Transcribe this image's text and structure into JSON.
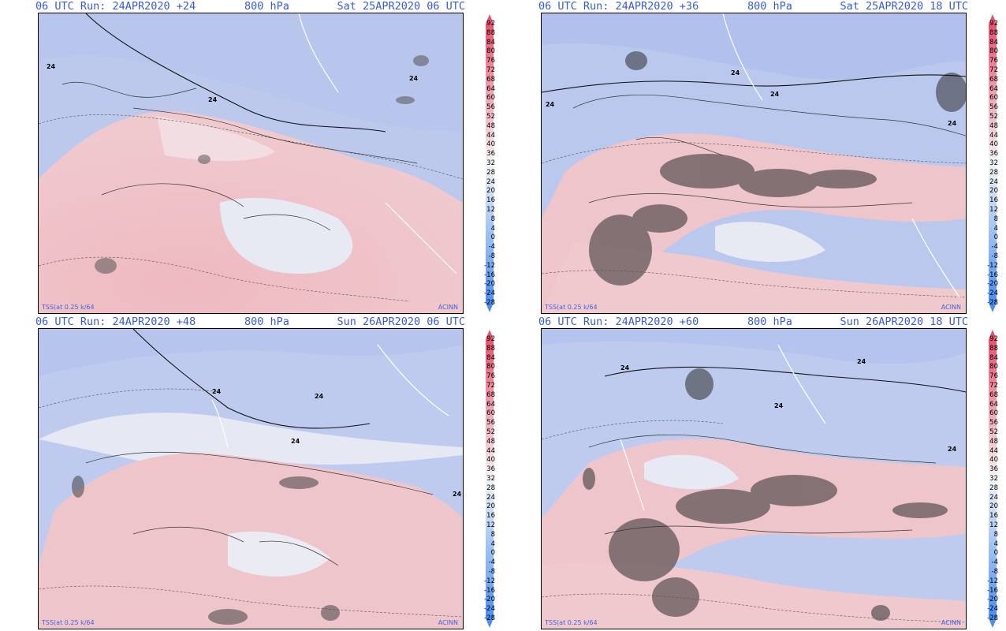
{
  "panels": [
    {
      "run": "06 UTC Run: 24APR2020 +24",
      "level": "800 hPa",
      "valid": "Sat 25APR2020 06 UTC",
      "corner_left": "TSS(at 0.25 k/64",
      "corner_right": "ACINN",
      "contour_labels": [
        "24",
        "24",
        "24"
      ]
    },
    {
      "run": "06 UTC Run: 24APR2020 +36",
      "level": "800 hPa",
      "valid": "Sat 25APR2020 18 UTC",
      "corner_left": "TSS(at 0.25 k/64",
      "corner_right": "ACINN",
      "contour_labels": [
        "24",
        "24",
        "24",
        "24"
      ]
    },
    {
      "run": "06 UTC Run: 24APR2020 +48",
      "level": "800 hPa",
      "valid": "Sun 26APR2020 06 UTC",
      "corner_left": "TSS(at 0.25 k/64",
      "corner_right": "ACINN",
      "contour_labels": [
        "24",
        "24",
        "24",
        "24"
      ]
    },
    {
      "run": "06 UTC Run: 24APR2020 +60",
      "level": "800 hPa",
      "valid": "Sun 26APR2020 18 UTC",
      "corner_left": "TSS(at 0.25 k/64",
      "corner_right": "ACINN",
      "contour_labels": [
        "24",
        "24",
        "24",
        "24"
      ]
    }
  ],
  "colorbar": {
    "ticks": [
      "92",
      "88",
      "84",
      "80",
      "76",
      "72",
      "68",
      "64",
      "60",
      "56",
      "52",
      "48",
      "44",
      "40",
      "36",
      "32",
      "28",
      "24",
      "20",
      "16",
      "12",
      "8",
      "4",
      "0",
      "-4",
      "-8",
      "-12",
      "-16",
      "-20",
      "-24",
      "-28"
    ],
    "colors": {
      "low": "#4a8ff0",
      "mid": "#f4f4f4",
      "high": "#e8536e"
    }
  }
}
